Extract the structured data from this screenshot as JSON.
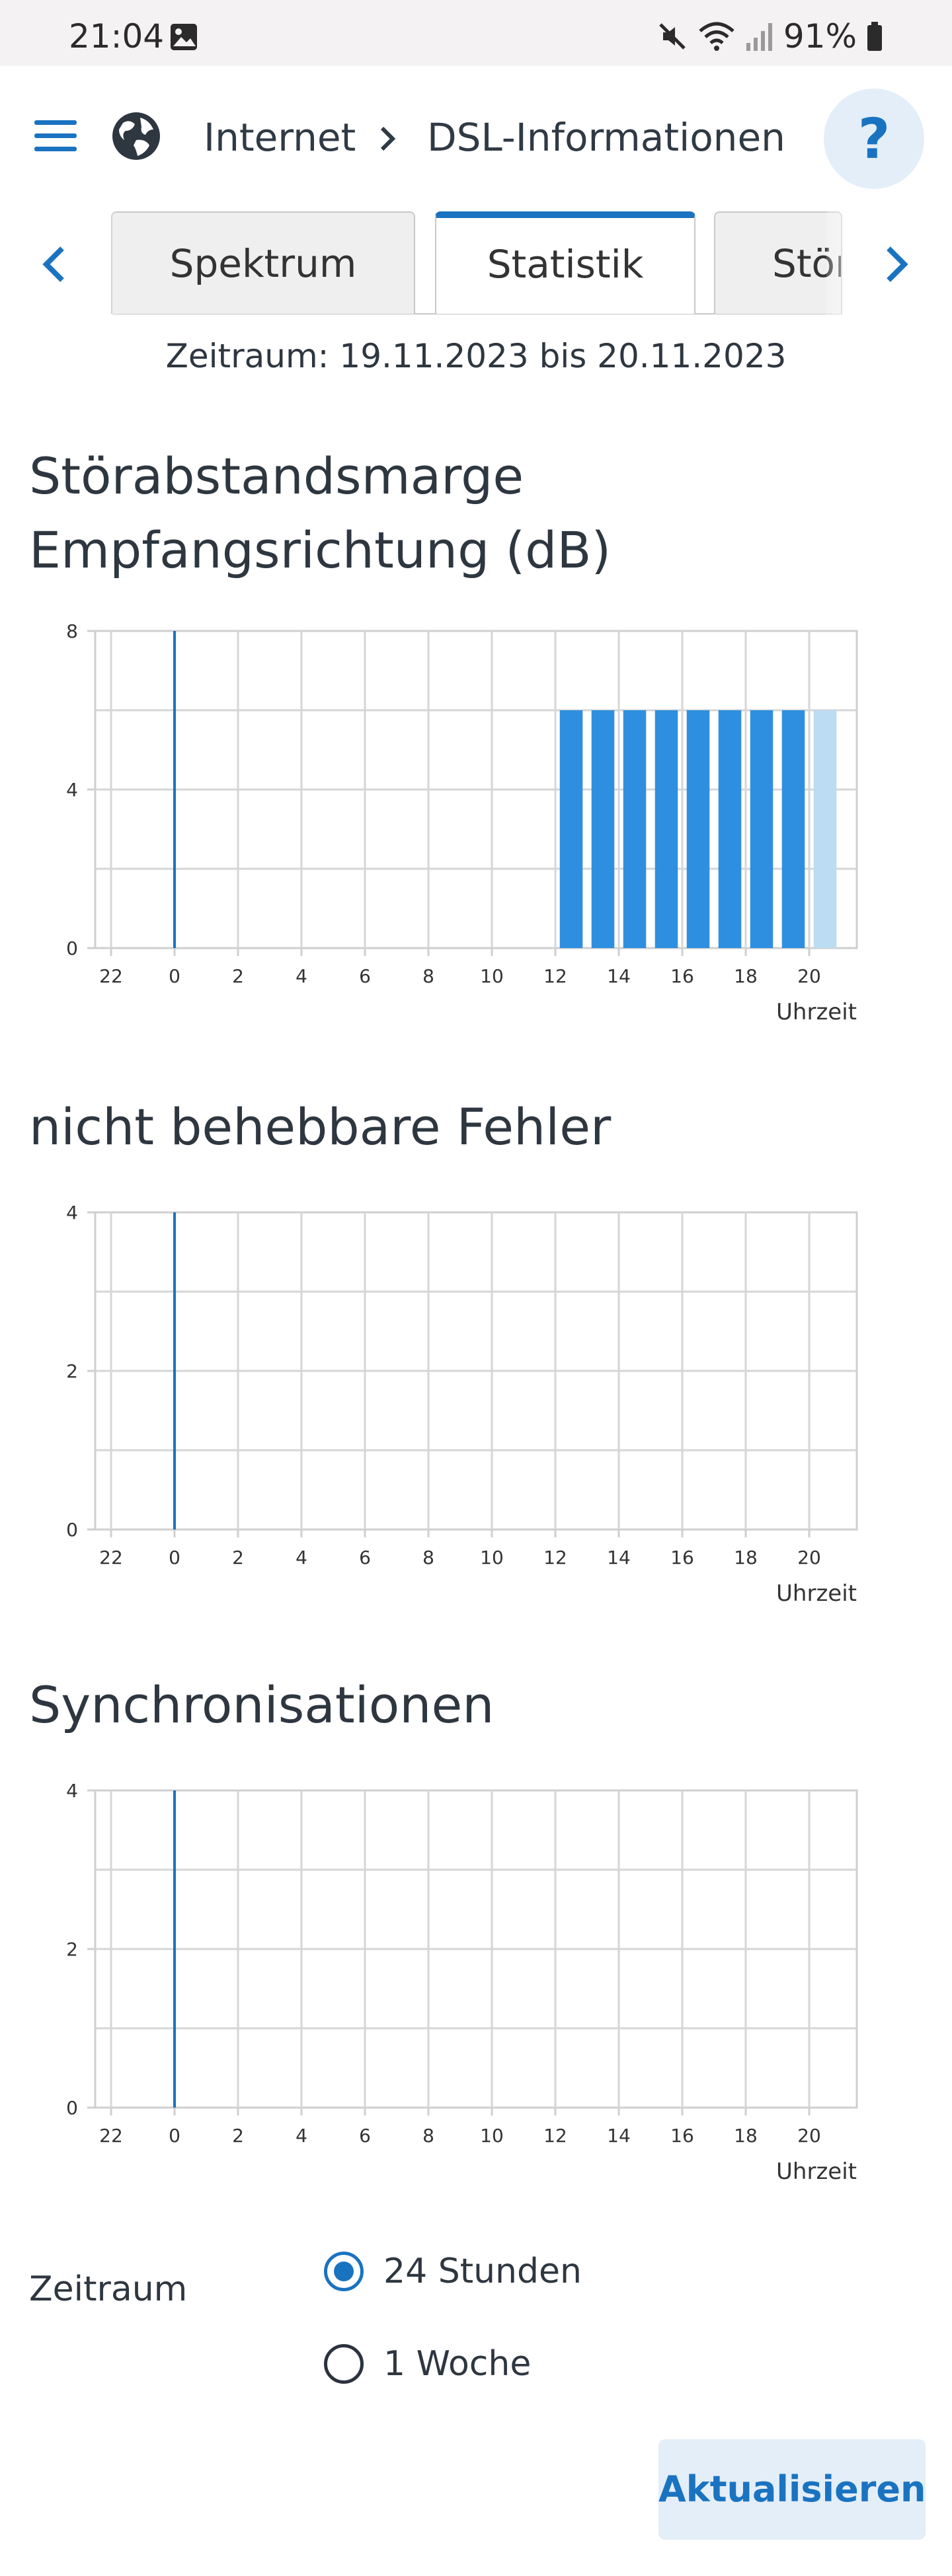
{
  "status_bar": {
    "time": "21:04",
    "battery": "91%"
  },
  "header": {
    "breadcrumb_parent": "Internet",
    "breadcrumb_current": "DSL-Informationen",
    "help_label": "?"
  },
  "tabs": [
    {
      "label": "Spektrum",
      "active": false
    },
    {
      "label": "Statistik",
      "active": true
    },
    {
      "label": "Störsicherheit",
      "active": false
    }
  ],
  "period_text": "Zeitraum: 19.11.2023 bis 20.11.2023",
  "charts": [
    {
      "title": "Störabstandsmarge Empfangsrichtung (dB)"
    },
    {
      "title": "nicht behebbare Fehler"
    },
    {
      "title": "Synchronisationen"
    }
  ],
  "chart_data": [
    {
      "type": "bar",
      "title": "Störabstandsmarge Empfangsrichtung (dB)",
      "xlabel": "Uhrzeit",
      "ylabel": "",
      "xlim": [
        -2.5,
        21.5
      ],
      "ylim": [
        0,
        8
      ],
      "x_ticks": [
        22,
        0,
        2,
        4,
        6,
        8,
        10,
        12,
        14,
        16,
        18,
        20
      ],
      "y_ticks": [
        0,
        4,
        8
      ],
      "grid": true,
      "day_change_at": 0,
      "x": [
        13,
        14,
        15,
        16,
        17,
        18,
        19,
        20,
        21
      ],
      "values": [
        6,
        6,
        6,
        6,
        6,
        6,
        6,
        6,
        6
      ],
      "bar_colors": [
        "#2e8fe0",
        "#2e8fe0",
        "#2e8fe0",
        "#2e8fe0",
        "#2e8fe0",
        "#2e8fe0",
        "#2e8fe0",
        "#2e8fe0",
        "#bcdcf2"
      ]
    },
    {
      "type": "bar",
      "title": "nicht behebbare Fehler",
      "xlabel": "Uhrzeit",
      "ylabel": "",
      "xlim": [
        -2.5,
        21.5
      ],
      "ylim": [
        0,
        4
      ],
      "x_ticks": [
        22,
        0,
        2,
        4,
        6,
        8,
        10,
        12,
        14,
        16,
        18,
        20
      ],
      "y_ticks": [
        0,
        2,
        4
      ],
      "grid": true,
      "day_change_at": 0,
      "x": [],
      "values": [],
      "bar_colors": []
    },
    {
      "type": "bar",
      "title": "Synchronisationen",
      "xlabel": "Uhrzeit",
      "ylabel": "",
      "xlim": [
        -2.5,
        21.5
      ],
      "ylim": [
        0,
        4
      ],
      "x_ticks": [
        22,
        0,
        2,
        4,
        6,
        8,
        10,
        12,
        14,
        16,
        18,
        20
      ],
      "y_ticks": [
        0,
        2,
        4
      ],
      "grid": true,
      "day_change_at": 0,
      "x": [],
      "values": [],
      "bar_colors": []
    }
  ],
  "period_selector": {
    "label": "Zeitraum",
    "options": [
      {
        "label": "24 Stunden",
        "selected": true
      },
      {
        "label": "1 Woche",
        "selected": false
      }
    ]
  },
  "refresh_label": "Aktualisieren",
  "colors": {
    "accent": "#1a73c0",
    "bar": "#2e8fe0",
    "bar_light": "#bcdcf2"
  }
}
